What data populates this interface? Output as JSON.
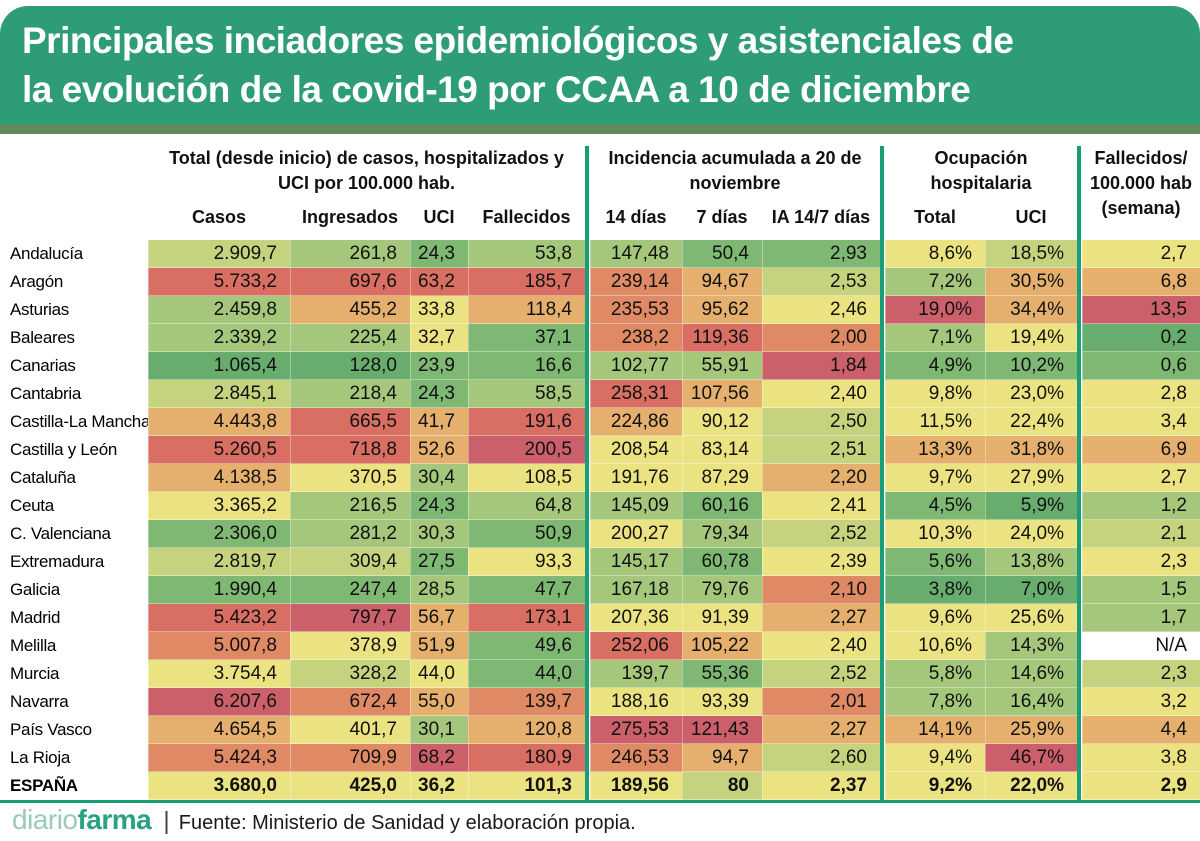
{
  "title": {
    "line1": "Principales inciadores epidemiológicos y asistenciales de",
    "line2": "la evolución de la covid-19 por CCAA a 10 de diciembre"
  },
  "chart_data": {
    "type": "table",
    "subtype": "heatmap",
    "description": "COVID-19 epidemiological and healthcare indicators by Spanish region (CCAA) as of 10 December, cells colored green (good) to red (bad)",
    "column_groups": [
      {
        "label_lines": [
          "Total (desde inicio) de casos, hospitalizados y",
          "UCI por 100.000 hab."
        ],
        "columns": [
          "Casos",
          "Ingresados",
          "UCI",
          "Fallecidos"
        ]
      },
      {
        "label_lines": [
          "Incidencia acumulada a 20 de",
          "noviembre"
        ],
        "columns": [
          "14 días",
          "7 días",
          "IA 14/7 días"
        ]
      },
      {
        "label_lines": [
          "Ocupación",
          "hospitalaria"
        ],
        "columns": [
          "Total",
          "UCI"
        ]
      },
      {
        "label_lines": [
          "Fallecidos/",
          "100.000 hab",
          "(semana)"
        ],
        "columns": []
      }
    ],
    "palette": {
      "g3": "#68ac6e",
      "g2": "#7fb873",
      "g1": "#a4c77c",
      "yg": "#c6d37e",
      "y": "#ebe381",
      "o": "#e5af6e",
      "or": "#df8a65",
      "r": "#d96f63",
      "dr": "#cb5f6a",
      "na": "#ffffff"
    },
    "rows": [
      {
        "name": "Andalucía",
        "bold": false,
        "cells": [
          [
            "2.909,7",
            "yg"
          ],
          [
            "261,8",
            "g1"
          ],
          [
            "24,3",
            "g2"
          ],
          [
            "53,8",
            "g1"
          ],
          [
            "147,48",
            "g1"
          ],
          [
            "50,4",
            "g2"
          ],
          [
            "2,93",
            "g2"
          ],
          [
            "8,6%",
            "y"
          ],
          [
            "18,5%",
            "yg"
          ],
          [
            "2,7",
            "y"
          ]
        ]
      },
      {
        "name": "Aragón",
        "bold": false,
        "cells": [
          [
            "5.733,2",
            "r"
          ],
          [
            "697,6",
            "r"
          ],
          [
            "63,2",
            "r"
          ],
          [
            "185,7",
            "r"
          ],
          [
            "239,14",
            "or"
          ],
          [
            "94,67",
            "o"
          ],
          [
            "2,53",
            "yg"
          ],
          [
            "7,2%",
            "g1"
          ],
          [
            "30,5%",
            "o"
          ],
          [
            "6,8",
            "o"
          ]
        ]
      },
      {
        "name": "Asturias",
        "bold": false,
        "cells": [
          [
            "2.459,8",
            "g1"
          ],
          [
            "455,2",
            "o"
          ],
          [
            "33,8",
            "y"
          ],
          [
            "118,4",
            "o"
          ],
          [
            "235,53",
            "or"
          ],
          [
            "95,62",
            "o"
          ],
          [
            "2,46",
            "y"
          ],
          [
            "19,0%",
            "dr"
          ],
          [
            "34,4%",
            "o"
          ],
          [
            "13,5",
            "dr"
          ]
        ]
      },
      {
        "name": "Baleares",
        "bold": false,
        "cells": [
          [
            "2.339,2",
            "g1"
          ],
          [
            "225,4",
            "g1"
          ],
          [
            "32,7",
            "y"
          ],
          [
            "37,1",
            "g2"
          ],
          [
            "238,2",
            "or"
          ],
          [
            "119,36",
            "r"
          ],
          [
            "2,00",
            "or"
          ],
          [
            "7,1%",
            "g1"
          ],
          [
            "19,4%",
            "y"
          ],
          [
            "0,2",
            "g3"
          ]
        ]
      },
      {
        "name": "Canarias",
        "bold": false,
        "cells": [
          [
            "1.065,4",
            "g3"
          ],
          [
            "128,0",
            "g3"
          ],
          [
            "23,9",
            "g2"
          ],
          [
            "16,6",
            "g2"
          ],
          [
            "102,77",
            "g1"
          ],
          [
            "55,91",
            "g1"
          ],
          [
            "1,84",
            "dr"
          ],
          [
            "4,9%",
            "g2"
          ],
          [
            "10,2%",
            "g2"
          ],
          [
            "0,6",
            "g2"
          ]
        ]
      },
      {
        "name": "Cantabria",
        "bold": false,
        "cells": [
          [
            "2.845,1",
            "yg"
          ],
          [
            "218,4",
            "g1"
          ],
          [
            "24,3",
            "g2"
          ],
          [
            "58,5",
            "g1"
          ],
          [
            "258,31",
            "r"
          ],
          [
            "107,56",
            "o"
          ],
          [
            "2,40",
            "y"
          ],
          [
            "9,8%",
            "y"
          ],
          [
            "23,0%",
            "y"
          ],
          [
            "2,8",
            "y"
          ]
        ]
      },
      {
        "name": "Castilla-La Mancha",
        "bold": false,
        "cells": [
          [
            "4.443,8",
            "o"
          ],
          [
            "665,5",
            "r"
          ],
          [
            "41,7",
            "o"
          ],
          [
            "191,6",
            "r"
          ],
          [
            "224,86",
            "o"
          ],
          [
            "90,12",
            "y"
          ],
          [
            "2,50",
            "yg"
          ],
          [
            "11,5%",
            "y"
          ],
          [
            "22,4%",
            "y"
          ],
          [
            "3,4",
            "y"
          ]
        ]
      },
      {
        "name": "Castilla y León",
        "bold": false,
        "cells": [
          [
            "5.260,5",
            "r"
          ],
          [
            "718,8",
            "r"
          ],
          [
            "52,6",
            "o"
          ],
          [
            "200,5",
            "dr"
          ],
          [
            "208,54",
            "y"
          ],
          [
            "83,14",
            "y"
          ],
          [
            "2,51",
            "yg"
          ],
          [
            "13,3%",
            "o"
          ],
          [
            "31,8%",
            "o"
          ],
          [
            "6,9",
            "o"
          ]
        ]
      },
      {
        "name": "Cataluña",
        "bold": false,
        "cells": [
          [
            "4.138,5",
            "o"
          ],
          [
            "370,5",
            "y"
          ],
          [
            "30,4",
            "g1"
          ],
          [
            "108,5",
            "y"
          ],
          [
            "191,76",
            "y"
          ],
          [
            "87,29",
            "y"
          ],
          [
            "2,20",
            "o"
          ],
          [
            "9,7%",
            "y"
          ],
          [
            "27,9%",
            "y"
          ],
          [
            "2,7",
            "y"
          ]
        ]
      },
      {
        "name": "Ceuta",
        "bold": false,
        "cells": [
          [
            "3.365,2",
            "y"
          ],
          [
            "216,5",
            "g1"
          ],
          [
            "24,3",
            "g2"
          ],
          [
            "64,8",
            "g1"
          ],
          [
            "145,09",
            "g1"
          ],
          [
            "60,16",
            "g2"
          ],
          [
            "2,41",
            "y"
          ],
          [
            "4,5%",
            "g2"
          ],
          [
            "5,9%",
            "g3"
          ],
          [
            "1,2",
            "g1"
          ]
        ]
      },
      {
        "name": "C. Valenciana",
        "bold": false,
        "cells": [
          [
            "2.306,0",
            "g2"
          ],
          [
            "281,2",
            "g1"
          ],
          [
            "30,3",
            "g1"
          ],
          [
            "50,9",
            "g2"
          ],
          [
            "200,27",
            "y"
          ],
          [
            "79,34",
            "g1"
          ],
          [
            "2,52",
            "yg"
          ],
          [
            "10,3%",
            "y"
          ],
          [
            "24,0%",
            "y"
          ],
          [
            "2,1",
            "yg"
          ]
        ]
      },
      {
        "name": "Extremadura",
        "bold": false,
        "cells": [
          [
            "2.819,7",
            "yg"
          ],
          [
            "309,4",
            "yg"
          ],
          [
            "27,5",
            "g2"
          ],
          [
            "93,3",
            "y"
          ],
          [
            "145,17",
            "g1"
          ],
          [
            "60,78",
            "g2"
          ],
          [
            "2,39",
            "y"
          ],
          [
            "5,6%",
            "g2"
          ],
          [
            "13,8%",
            "g1"
          ],
          [
            "2,3",
            "y"
          ]
        ]
      },
      {
        "name": "Galicia",
        "bold": false,
        "cells": [
          [
            "1.990,4",
            "g2"
          ],
          [
            "247,4",
            "g2"
          ],
          [
            "28,5",
            "g1"
          ],
          [
            "47,7",
            "g2"
          ],
          [
            "167,18",
            "g1"
          ],
          [
            "79,76",
            "g1"
          ],
          [
            "2,10",
            "or"
          ],
          [
            "3,8%",
            "g3"
          ],
          [
            "7,0%",
            "g3"
          ],
          [
            "1,5",
            "g1"
          ]
        ]
      },
      {
        "name": "Madrid",
        "bold": false,
        "cells": [
          [
            "5.423,2",
            "r"
          ],
          [
            "797,7",
            "dr"
          ],
          [
            "56,7",
            "o"
          ],
          [
            "173,1",
            "r"
          ],
          [
            "207,36",
            "y"
          ],
          [
            "91,39",
            "y"
          ],
          [
            "2,27",
            "o"
          ],
          [
            "9,6%",
            "y"
          ],
          [
            "25,6%",
            "y"
          ],
          [
            "1,7",
            "g1"
          ]
        ]
      },
      {
        "name": "Melilla",
        "bold": false,
        "cells": [
          [
            "5.007,8",
            "or"
          ],
          [
            "378,9",
            "y"
          ],
          [
            "51,9",
            "o"
          ],
          [
            "49,6",
            "g2"
          ],
          [
            "252,06",
            "r"
          ],
          [
            "105,22",
            "o"
          ],
          [
            "2,40",
            "y"
          ],
          [
            "10,6%",
            "y"
          ],
          [
            "14,3%",
            "g1"
          ],
          [
            "N/A",
            "na"
          ]
        ]
      },
      {
        "name": "Murcia",
        "bold": false,
        "cells": [
          [
            "3.754,4",
            "y"
          ],
          [
            "328,2",
            "yg"
          ],
          [
            "44,0",
            "y"
          ],
          [
            "44,0",
            "g2"
          ],
          [
            "139,7",
            "g1"
          ],
          [
            "55,36",
            "g2"
          ],
          [
            "2,52",
            "yg"
          ],
          [
            "5,8%",
            "g1"
          ],
          [
            "14,6%",
            "g1"
          ],
          [
            "2,3",
            "yg"
          ]
        ]
      },
      {
        "name": "Navarra",
        "bold": false,
        "cells": [
          [
            "6.207,6",
            "dr"
          ],
          [
            "672,4",
            "or"
          ],
          [
            "55,0",
            "o"
          ],
          [
            "139,7",
            "or"
          ],
          [
            "188,16",
            "y"
          ],
          [
            "93,39",
            "y"
          ],
          [
            "2,01",
            "or"
          ],
          [
            "7,8%",
            "g1"
          ],
          [
            "16,4%",
            "g1"
          ],
          [
            "3,2",
            "y"
          ]
        ]
      },
      {
        "name": "País Vasco",
        "bold": false,
        "cells": [
          [
            "4.654,5",
            "o"
          ],
          [
            "401,7",
            "y"
          ],
          [
            "30,1",
            "g1"
          ],
          [
            "120,8",
            "o"
          ],
          [
            "275,53",
            "dr"
          ],
          [
            "121,43",
            "dr"
          ],
          [
            "2,27",
            "o"
          ],
          [
            "14,1%",
            "o"
          ],
          [
            "25,9%",
            "o"
          ],
          [
            "4,4",
            "o"
          ]
        ]
      },
      {
        "name": "La Rioja",
        "bold": false,
        "cells": [
          [
            "5.424,3",
            "or"
          ],
          [
            "709,9",
            "or"
          ],
          [
            "68,2",
            "dr"
          ],
          [
            "180,9",
            "r"
          ],
          [
            "246,53",
            "or"
          ],
          [
            "94,7",
            "o"
          ],
          [
            "2,60",
            "yg"
          ],
          [
            "9,4%",
            "y"
          ],
          [
            "46,7%",
            "dr"
          ],
          [
            "3,8",
            "y"
          ]
        ]
      },
      {
        "name": "ESPAÑA",
        "bold": true,
        "cells": [
          [
            "3.680,0",
            "y"
          ],
          [
            "425,0",
            "y"
          ],
          [
            "36,2",
            "y"
          ],
          [
            "101,3",
            "y"
          ],
          [
            "189,56",
            "y"
          ],
          [
            "80",
            "yg"
          ],
          [
            "2,37",
            "y"
          ],
          [
            "9,2%",
            "y"
          ],
          [
            "22,0%",
            "y"
          ],
          [
            "2,9",
            "y"
          ]
        ]
      }
    ]
  },
  "footer": {
    "logo_light": "diario",
    "logo_bold": "farma",
    "separator": "|",
    "source": "Fuente: Ministerio de Sanidad y elaboración propia."
  },
  "colors": {
    "banner_green": "#2f9c78",
    "strip_green": "#5d8b5f",
    "separator_teal": "#189e77",
    "logo_light": "#9bccb3",
    "logo_dark": "#2aa185",
    "title_text": "#ffffff"
  }
}
